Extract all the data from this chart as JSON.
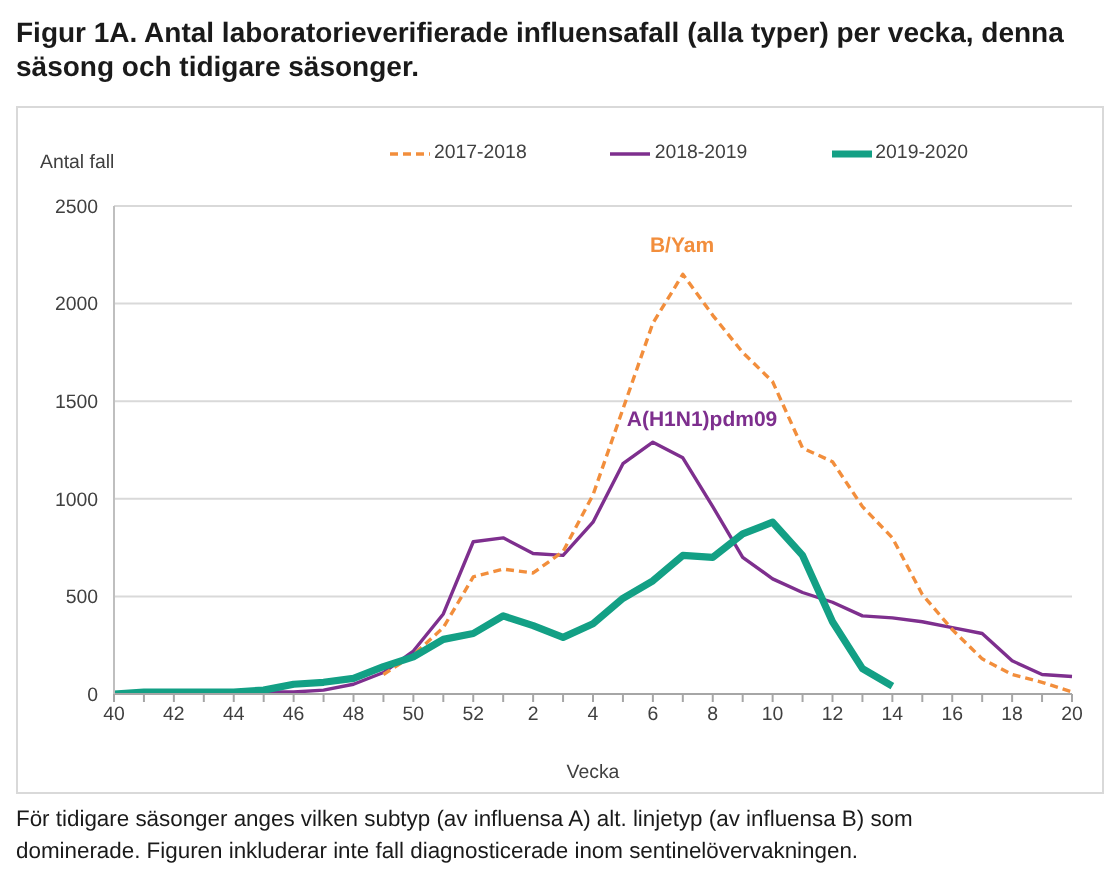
{
  "chart_data": {
    "type": "line",
    "title": "Figur 1A. Antal laboratorieverifierade influensafall (alla typer) per vecka, denna säsong och tidigare säsonger.",
    "xlabel": "Vecka",
    "ylabel": "Antal fall",
    "categories": [
      "40",
      null,
      "42",
      null,
      "44",
      null,
      "46",
      null,
      "48",
      null,
      "50",
      null,
      "52",
      null,
      "2",
      null,
      "4",
      null,
      "6",
      null,
      "8",
      null,
      "10",
      null,
      "12",
      null,
      "14",
      null,
      "16",
      null,
      "18",
      null,
      "20"
    ],
    "series": [
      {
        "name": "2017-2018",
        "color": "#f28e3c",
        "line_style": "dashed",
        "values": [
          null,
          null,
          null,
          null,
          null,
          null,
          null,
          null,
          null,
          100,
          200,
          340,
          600,
          640,
          620,
          730,
          1020,
          1460,
          1900,
          2150,
          1940,
          1750,
          1600,
          1260,
          1190,
          960,
          800,
          510,
          330,
          180,
          100,
          60,
          10
        ]
      },
      {
        "name": "2018-2019",
        "color": "#7e2f8e",
        "values": [
          0,
          0,
          0,
          0,
          0,
          10,
          10,
          20,
          50,
          110,
          220,
          410,
          780,
          800,
          720,
          710,
          880,
          1180,
          1290,
          1210,
          960,
          700,
          590,
          520,
          470,
          400,
          390,
          370,
          340,
          310,
          170,
          100,
          90
        ]
      },
      {
        "name": "2019-2020",
        "color": "#13a085",
        "values": [
          0,
          10,
          10,
          10,
          10,
          20,
          50,
          60,
          80,
          140,
          190,
          280,
          310,
          400,
          350,
          290,
          360,
          490,
          580,
          710,
          700,
          820,
          880,
          710,
          370,
          130,
          40,
          null,
          null,
          null,
          null,
          null,
          null
        ]
      }
    ],
    "ylim": [
      0,
      2500
    ],
    "yticks": [
      0,
      500,
      1000,
      1500,
      2000,
      2500
    ],
    "grid": "y",
    "legend": "top",
    "marker": "none",
    "line_style": "solid",
    "annotations": [
      "B/Yam",
      "A(H1N1)pdm09",
      "För tidigare säsonger anges vilken subtyp (av influensa A) alt. linjetyp (av influensa B) som dominerade. Figuren inkluderar inte fall diagnosticerade inom sentinelövervakningen."
    ]
  }
}
